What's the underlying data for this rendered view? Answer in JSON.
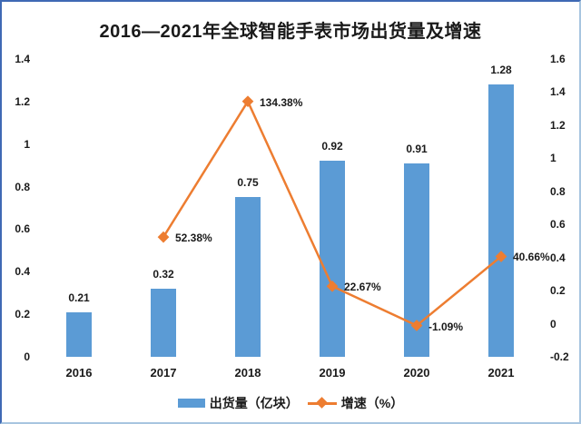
{
  "title": "2016—2021年全球智能手表市场出货量及增速",
  "colors": {
    "bar": "#5B9BD5",
    "line": "#ED7D31",
    "text": "#1a1a1a",
    "border_dark": "#3f69b4",
    "border_light": "#a8c5e0",
    "background": "#ffffff"
  },
  "chart_data": {
    "type": "combo",
    "categories": [
      "2016",
      "2017",
      "2018",
      "2019",
      "2020",
      "2021"
    ],
    "series": [
      {
        "name": "出货量（亿块）",
        "type": "bar",
        "axis": "left",
        "color": "#5B9BD5",
        "values": [
          0.21,
          0.32,
          0.75,
          0.92,
          0.91,
          1.28
        ],
        "labels": [
          "0.21",
          "0.32",
          "0.75",
          "0.92",
          "0.91",
          "1.28"
        ]
      },
      {
        "name": "增速（%）",
        "type": "line",
        "axis": "right",
        "color": "#ED7D31",
        "marker": "diamond",
        "values": [
          null,
          0.5238,
          1.3438,
          0.2267,
          -0.0109,
          0.4066
        ],
        "labels": [
          null,
          "52.38%",
          "134.38%",
          "22.67%",
          "-1.09%",
          "40.66%"
        ]
      }
    ],
    "left_axis": {
      "min": 0,
      "max": 1.4,
      "step": 0.2,
      "ticks": [
        "0",
        "0.2",
        "0.4",
        "0.6",
        "0.8",
        "1",
        "1.2",
        "1.4"
      ]
    },
    "right_axis": {
      "min": -0.2,
      "max": 1.6,
      "step": 0.2,
      "ticks": [
        "-0.2",
        "0",
        "0.2",
        "0.4",
        "0.6",
        "0.8",
        "1",
        "1.2",
        "1.4",
        "1.6"
      ]
    },
    "grid": false,
    "legend_position": "bottom"
  }
}
